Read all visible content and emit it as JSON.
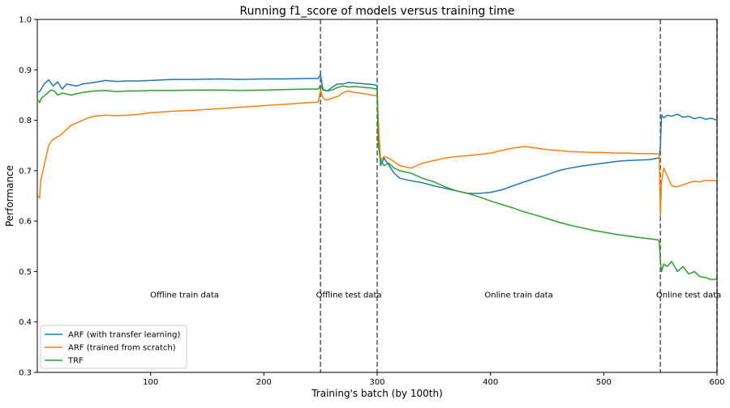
{
  "chart_data": {
    "type": "line",
    "title": "Running f1_score of models versus training time",
    "xlabel": "Training's batch (by 100th)",
    "ylabel": "Performance",
    "xlim": [
      0,
      600
    ],
    "ylim": [
      0.3,
      1.0
    ],
    "xticks": [
      100,
      200,
      300,
      400,
      500,
      600
    ],
    "yticks": [
      0.3,
      0.4,
      0.5,
      0.6,
      0.7,
      0.8,
      0.9,
      1.0
    ],
    "xtick_labels": [
      "100",
      "200",
      "300",
      "400",
      "500",
      "600"
    ],
    "ytick_labels": [
      "0.3",
      "0.4",
      "0.5",
      "0.6",
      "0.7",
      "0.8",
      "0.9",
      "1.0"
    ],
    "grid": false,
    "legend_position": "lower-left",
    "vlines": [
      250,
      300,
      550,
      600
    ],
    "regions": [
      {
        "label": "Offline train data",
        "x": 130,
        "y": 0.455
      },
      {
        "label": "Offline test data",
        "x": 275,
        "y": 0.455
      },
      {
        "label": "Online train data",
        "x": 425,
        "y": 0.455
      },
      {
        "label": "Online test data",
        "x": 575,
        "y": 0.455
      }
    ],
    "series": [
      {
        "name": "ARF (with transfer learning)",
        "color": "#1f77b4",
        "x": [
          1,
          3,
          6,
          10,
          14,
          18,
          22,
          26,
          30,
          35,
          40,
          50,
          60,
          70,
          80,
          90,
          100,
          120,
          140,
          160,
          180,
          200,
          220,
          240,
          248,
          250,
          252,
          256,
          260,
          265,
          270,
          275,
          280,
          285,
          290,
          295,
          299,
          300,
          301,
          303,
          306,
          310,
          315,
          320,
          330,
          340,
          350,
          360,
          370,
          380,
          390,
          400,
          410,
          420,
          430,
          440,
          450,
          460,
          470,
          480,
          490,
          500,
          510,
          520,
          530,
          540,
          548,
          549,
          550,
          551,
          553,
          556,
          560,
          565,
          570,
          575,
          580,
          585,
          590,
          595,
          600
        ],
        "y": [
          0.855,
          0.86,
          0.872,
          0.88,
          0.868,
          0.876,
          0.862,
          0.872,
          0.87,
          0.868,
          0.872,
          0.875,
          0.879,
          0.877,
          0.878,
          0.878,
          0.879,
          0.881,
          0.881,
          0.882,
          0.881,
          0.882,
          0.882,
          0.883,
          0.883,
          0.891,
          0.862,
          0.858,
          0.865,
          0.872,
          0.872,
          0.875,
          0.874,
          0.873,
          0.872,
          0.871,
          0.87,
          0.868,
          0.78,
          0.71,
          0.725,
          0.712,
          0.695,
          0.685,
          0.68,
          0.676,
          0.67,
          0.665,
          0.66,
          0.655,
          0.655,
          0.657,
          0.662,
          0.67,
          0.678,
          0.685,
          0.692,
          0.7,
          0.705,
          0.709,
          0.712,
          0.715,
          0.718,
          0.72,
          0.721,
          0.722,
          0.725,
          0.727,
          0.75,
          0.81,
          0.805,
          0.81,
          0.808,
          0.812,
          0.806,
          0.808,
          0.803,
          0.806,
          0.802,
          0.804,
          0.8
        ]
      },
      {
        "name": "ARF (trained from scratch)",
        "color": "#ff7f0e",
        "x": [
          1,
          2,
          3,
          5,
          7,
          10,
          13,
          16,
          20,
          25,
          30,
          35,
          40,
          45,
          50,
          60,
          70,
          80,
          90,
          100,
          120,
          140,
          160,
          180,
          200,
          220,
          240,
          248,
          250,
          252,
          255,
          258,
          262,
          266,
          270,
          275,
          280,
          285,
          290,
          295,
          299,
          300,
          301,
          303,
          306,
          310,
          315,
          320,
          330,
          340,
          350,
          360,
          370,
          380,
          390,
          400,
          410,
          420,
          430,
          440,
          450,
          460,
          470,
          480,
          490,
          500,
          510,
          520,
          530,
          540,
          548,
          549,
          550,
          551,
          553,
          556,
          560,
          565,
          570,
          575,
          580,
          585,
          590,
          595,
          600
        ],
        "y": [
          0.65,
          0.645,
          0.68,
          0.7,
          0.72,
          0.75,
          0.76,
          0.765,
          0.77,
          0.78,
          0.79,
          0.795,
          0.8,
          0.805,
          0.808,
          0.81,
          0.809,
          0.81,
          0.812,
          0.815,
          0.818,
          0.82,
          0.823,
          0.826,
          0.829,
          0.832,
          0.835,
          0.836,
          0.86,
          0.845,
          0.84,
          0.842,
          0.845,
          0.848,
          0.855,
          0.858,
          0.855,
          0.854,
          0.852,
          0.85,
          0.849,
          0.847,
          0.8,
          0.72,
          0.728,
          0.725,
          0.718,
          0.71,
          0.705,
          0.715,
          0.72,
          0.725,
          0.728,
          0.73,
          0.732,
          0.735,
          0.74,
          0.745,
          0.748,
          0.745,
          0.742,
          0.74,
          0.738,
          0.737,
          0.736,
          0.736,
          0.735,
          0.735,
          0.734,
          0.734,
          0.733,
          0.733,
          0.61,
          0.68,
          0.705,
          0.69,
          0.67,
          0.668,
          0.672,
          0.676,
          0.679,
          0.678,
          0.681,
          0.68,
          0.68
        ]
      },
      {
        "name": "TRF",
        "color": "#2ca02c",
        "x": [
          1,
          2,
          4,
          6,
          8,
          10,
          12,
          15,
          18,
          22,
          26,
          30,
          35,
          40,
          50,
          60,
          70,
          80,
          90,
          100,
          120,
          140,
          160,
          180,
          200,
          220,
          240,
          248,
          250,
          252,
          256,
          260,
          265,
          270,
          275,
          280,
          285,
          290,
          295,
          299,
          300,
          301,
          303,
          306,
          310,
          315,
          320,
          330,
          340,
          350,
          360,
          370,
          380,
          390,
          400,
          410,
          420,
          430,
          440,
          450,
          460,
          470,
          480,
          490,
          500,
          510,
          520,
          530,
          540,
          548,
          549,
          550,
          551,
          553,
          556,
          560,
          565,
          570,
          575,
          580,
          585,
          590,
          595,
          600
        ],
        "y": [
          0.84,
          0.835,
          0.845,
          0.848,
          0.852,
          0.856,
          0.86,
          0.858,
          0.85,
          0.854,
          0.852,
          0.85,
          0.853,
          0.855,
          0.858,
          0.859,
          0.857,
          0.858,
          0.858,
          0.859,
          0.859,
          0.86,
          0.86,
          0.859,
          0.86,
          0.861,
          0.862,
          0.862,
          0.87,
          0.86,
          0.858,
          0.86,
          0.865,
          0.868,
          0.866,
          0.867,
          0.866,
          0.865,
          0.864,
          0.862,
          0.86,
          0.75,
          0.72,
          0.71,
          0.715,
          0.705,
          0.7,
          0.695,
          0.685,
          0.678,
          0.668,
          0.66,
          0.655,
          0.648,
          0.64,
          0.633,
          0.626,
          0.618,
          0.612,
          0.605,
          0.598,
          0.592,
          0.587,
          0.582,
          0.578,
          0.574,
          0.571,
          0.568,
          0.565,
          0.563,
          0.56,
          0.52,
          0.5,
          0.515,
          0.51,
          0.52,
          0.5,
          0.51,
          0.495,
          0.5,
          0.49,
          0.488,
          0.484,
          0.485
        ]
      }
    ]
  }
}
